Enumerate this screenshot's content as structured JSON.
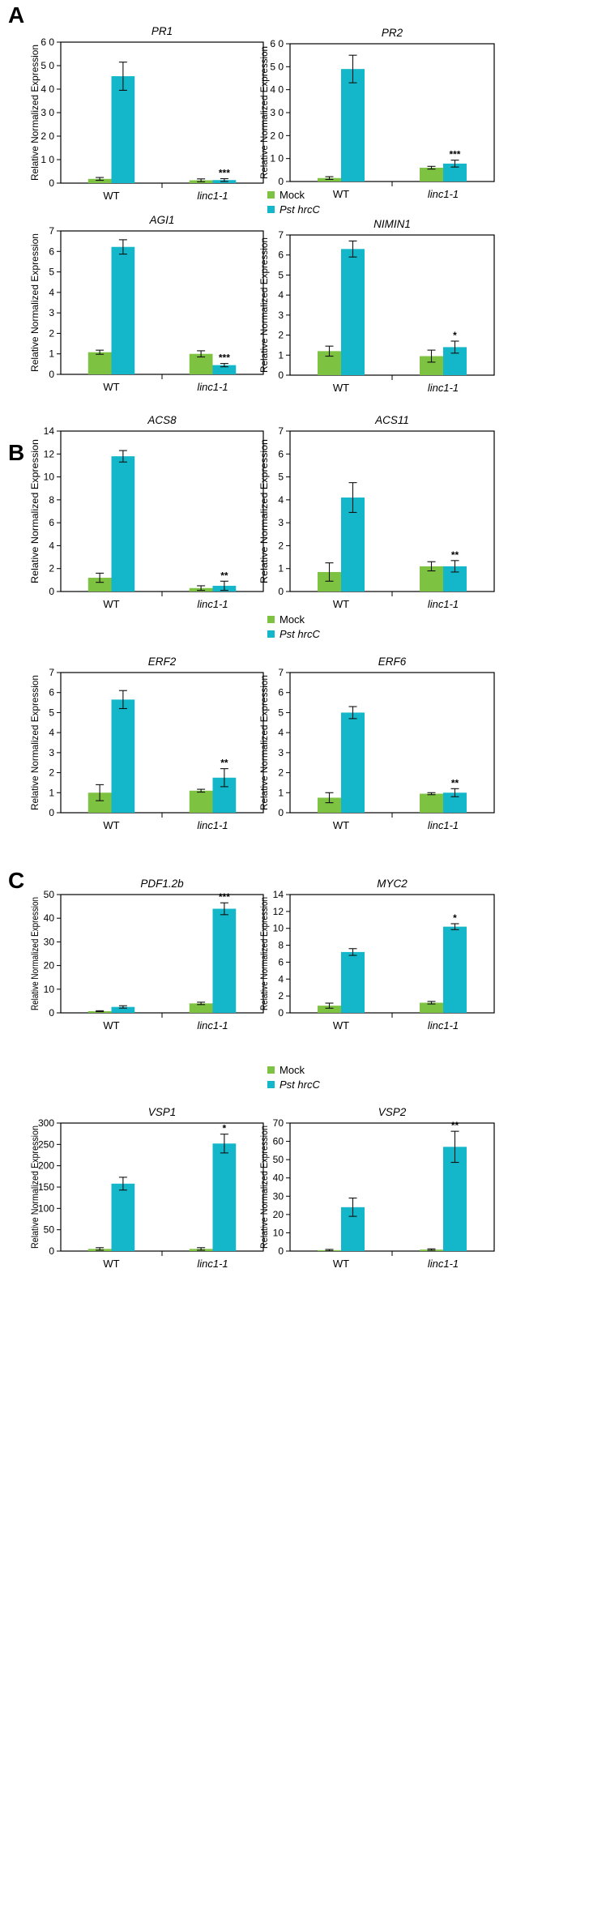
{
  "figure": {
    "colors": {
      "mock": "#7ec241",
      "pst": "#13b7c9",
      "axis": "#000000",
      "error": "#111111"
    },
    "panels": [
      {
        "label": "A"
      },
      {
        "label": "B"
      },
      {
        "label": "C"
      }
    ],
    "legends": [
      {
        "mock_label": "Mock",
        "pst_label": "Pst hrcC"
      },
      {
        "mock_label": "Mock",
        "pst_label": "Pst hrcC"
      },
      {
        "mock_label": "Mock",
        "pst_label": "Pst hrcC"
      }
    ]
  },
  "chart_data": [
    {
      "type": "bar",
      "title": "PR1",
      "ylabel": "Relative Normalized Expression",
      "ylim": [
        0,
        60
      ],
      "yticks": [
        0,
        10,
        20,
        30,
        40,
        50,
        60
      ],
      "ytick_labels": [
        "0",
        "1 0",
        "2 0",
        "3 0",
        "4 0",
        "5 0",
        "6 0"
      ],
      "categories": [
        "WT",
        "linc1-1"
      ],
      "series": [
        {
          "name": "Mock",
          "values": [
            1.8,
            1.2
          ],
          "errors": [
            0.6,
            0.6
          ]
        },
        {
          "name": "Pst hrcC",
          "values": [
            45.5,
            1.3
          ],
          "errors": [
            6.0,
            0.6
          ]
        }
      ],
      "annotations": [
        "",
        "***"
      ]
    },
    {
      "type": "bar",
      "title": "PR2",
      "ylabel": "Relative Normalized Expression",
      "ylim": [
        0,
        60
      ],
      "yticks": [
        0,
        10,
        20,
        30,
        40,
        50,
        60
      ],
      "ytick_labels": [
        "0",
        "1 0",
        "2 0",
        "3 0",
        "4 0",
        "5 0",
        "6 0"
      ],
      "categories": [
        "WT",
        "linc1-1"
      ],
      "series": [
        {
          "name": "Mock",
          "values": [
            1.5,
            6.0
          ],
          "errors": [
            0.6,
            0.6
          ]
        },
        {
          "name": "Pst hrcC",
          "values": [
            49.0,
            7.8
          ],
          "errors": [
            6.0,
            1.5
          ]
        }
      ],
      "annotations": [
        "",
        "***"
      ]
    },
    {
      "type": "bar",
      "title": "AGI1",
      "ylabel": "Relative Normalized Expression",
      "ylim": [
        0,
        7
      ],
      "yticks": [
        0,
        1,
        2,
        3,
        4,
        5,
        6,
        7
      ],
      "ytick_labels": [
        "0",
        "1",
        "2",
        "3",
        "4",
        "5",
        "6",
        "7"
      ],
      "categories": [
        "WT",
        "linc1-1"
      ],
      "series": [
        {
          "name": "Mock",
          "values": [
            1.08,
            1.0
          ],
          "errors": [
            0.1,
            0.15
          ]
        },
        {
          "name": "Pst hrcC",
          "values": [
            6.22,
            0.45
          ],
          "errors": [
            0.35,
            0.08
          ]
        }
      ],
      "annotations": [
        "",
        "***"
      ]
    },
    {
      "type": "bar",
      "title": "NIMIN1",
      "ylabel": "Relative Normalized Expression",
      "ylim": [
        0,
        7
      ],
      "yticks": [
        0,
        1,
        2,
        3,
        4,
        5,
        6,
        7
      ],
      "ytick_labels": [
        "0",
        "1",
        "2",
        "3",
        "4",
        "5",
        "6",
        "7"
      ],
      "categories": [
        "WT",
        "linc1-1"
      ],
      "series": [
        {
          "name": "Mock",
          "values": [
            1.2,
            0.95
          ],
          "errors": [
            0.25,
            0.3
          ]
        },
        {
          "name": "Pst hrcC",
          "values": [
            6.3,
            1.4
          ],
          "errors": [
            0.4,
            0.3
          ]
        }
      ],
      "annotations": [
        "",
        "*"
      ]
    },
    {
      "type": "bar",
      "title": "ACS8",
      "ylabel": "Relative Normalized Expression",
      "ylim": [
        0,
        14
      ],
      "yticks": [
        0,
        2,
        4,
        6,
        8,
        10,
        12,
        14
      ],
      "ytick_labels": [
        "0",
        "2",
        "4",
        "6",
        "8",
        "10",
        "12",
        "14"
      ],
      "categories": [
        "WT",
        "linc1-1"
      ],
      "series": [
        {
          "name": "Mock",
          "values": [
            1.2,
            0.3
          ],
          "errors": [
            0.4,
            0.2
          ]
        },
        {
          "name": "Pst hrcC",
          "values": [
            11.8,
            0.5
          ],
          "errors": [
            0.5,
            0.4
          ]
        }
      ],
      "annotations": [
        "",
        "**"
      ]
    },
    {
      "type": "bar",
      "title": "ACS11",
      "ylabel": "Relative Normalized Expression",
      "ylim": [
        0,
        7
      ],
      "yticks": [
        0,
        1,
        2,
        3,
        4,
        5,
        6,
        7
      ],
      "ytick_labels": [
        "0",
        "1",
        "2",
        "3",
        "4",
        "5",
        "6",
        "7"
      ],
      "categories": [
        "WT",
        "linc1-1"
      ],
      "series": [
        {
          "name": "Mock",
          "values": [
            0.85,
            1.1
          ],
          "errors": [
            0.4,
            0.2
          ]
        },
        {
          "name": "Pst hrcC",
          "values": [
            4.1,
            1.1
          ],
          "errors": [
            0.65,
            0.25
          ]
        }
      ],
      "annotations": [
        "",
        "**"
      ]
    },
    {
      "type": "bar",
      "title": "ERF2",
      "ylabel": "Relative Normalized Expression",
      "ylim": [
        0,
        7
      ],
      "yticks": [
        0,
        1,
        2,
        3,
        4,
        5,
        6,
        7
      ],
      "ytick_labels": [
        "0",
        "1",
        "2",
        "3",
        "4",
        "5",
        "6",
        "7"
      ],
      "categories": [
        "WT",
        "linc1-1"
      ],
      "series": [
        {
          "name": "Mock",
          "values": [
            1.0,
            1.1
          ],
          "errors": [
            0.4,
            0.07
          ]
        },
        {
          "name": "Pst hrcC",
          "values": [
            5.65,
            1.75
          ],
          "errors": [
            0.45,
            0.45
          ]
        }
      ],
      "annotations": [
        "",
        "**"
      ]
    },
    {
      "type": "bar",
      "title": "ERF6",
      "ylabel": "Relative Normalized Expression",
      "ylim": [
        0,
        7
      ],
      "yticks": [
        0,
        1,
        2,
        3,
        4,
        5,
        6,
        7
      ],
      "ytick_labels": [
        "0",
        "1",
        "2",
        "3",
        "4",
        "5",
        "6",
        "7"
      ],
      "categories": [
        "WT",
        "linc1-1"
      ],
      "series": [
        {
          "name": "Mock",
          "values": [
            0.75,
            0.95
          ],
          "errors": [
            0.25,
            0.05
          ]
        },
        {
          "name": "Pst hrcC",
          "values": [
            5.0,
            1.0
          ],
          "errors": [
            0.3,
            0.2
          ]
        }
      ],
      "annotations": [
        "",
        "**"
      ]
    },
    {
      "type": "bar",
      "title": "PDF1.2b",
      "ylabel": "Relative Normalized Expression",
      "ylim": [
        0,
        50
      ],
      "yticks": [
        0,
        10,
        20,
        30,
        40,
        50
      ],
      "ytick_labels": [
        "0",
        "10",
        "20",
        "30",
        "40",
        "50"
      ],
      "categories": [
        "WT",
        "linc1-1"
      ],
      "series": [
        {
          "name": "Mock",
          "values": [
            0.7,
            4.0
          ],
          "errors": [
            0.2,
            0.5
          ]
        },
        {
          "name": "Pst hrcC",
          "values": [
            2.5,
            44.0
          ],
          "errors": [
            0.5,
            2.5
          ]
        }
      ],
      "annotations": [
        "",
        "***"
      ]
    },
    {
      "type": "bar",
      "title": "MYC2",
      "ylabel": "Relative Normalized Expression",
      "ylim": [
        0,
        14
      ],
      "yticks": [
        0,
        2,
        4,
        6,
        8,
        10,
        12,
        14
      ],
      "ytick_labels": [
        "0",
        "2",
        "4",
        "6",
        "8",
        "10",
        "12",
        "14"
      ],
      "categories": [
        "WT",
        "linc1-1"
      ],
      "series": [
        {
          "name": "Mock",
          "values": [
            0.85,
            1.2
          ],
          "errors": [
            0.3,
            0.15
          ]
        },
        {
          "name": "Pst hrcC",
          "values": [
            7.2,
            10.2
          ],
          "errors": [
            0.4,
            0.35
          ]
        }
      ],
      "annotations": [
        "",
        "*"
      ]
    },
    {
      "type": "bar",
      "title": "VSP1",
      "ylabel": "Relative Normalized Expression",
      "ylim": [
        0,
        300
      ],
      "yticks": [
        0,
        50,
        100,
        150,
        200,
        250,
        300
      ],
      "ytick_labels": [
        "0",
        "50",
        "100",
        "150",
        "200",
        "250",
        "300"
      ],
      "categories": [
        "WT",
        "linc1-1"
      ],
      "series": [
        {
          "name": "Mock",
          "values": [
            5,
            5
          ],
          "errors": [
            3,
            3
          ]
        },
        {
          "name": "Pst hrcC",
          "values": [
            158,
            252
          ],
          "errors": [
            15,
            22
          ]
        }
      ],
      "annotations": [
        "",
        "*"
      ]
    },
    {
      "type": "bar",
      "title": "VSP2",
      "ylabel": "Relative Normalized Expression",
      "ylim": [
        0,
        70
      ],
      "yticks": [
        0,
        10,
        20,
        30,
        40,
        50,
        60,
        70
      ],
      "ytick_labels": [
        "0",
        "10",
        "20",
        "30",
        "40",
        "50",
        "60",
        "70"
      ],
      "categories": [
        "WT",
        "linc1-1"
      ],
      "series": [
        {
          "name": "Mock",
          "values": [
            0.5,
            0.8
          ],
          "errors": [
            0.4,
            0.4
          ]
        },
        {
          "name": "Pst hrcC",
          "values": [
            24.0,
            57.0
          ],
          "errors": [
            5.0,
            8.5
          ]
        }
      ],
      "annotations": [
        "",
        "**"
      ]
    }
  ]
}
